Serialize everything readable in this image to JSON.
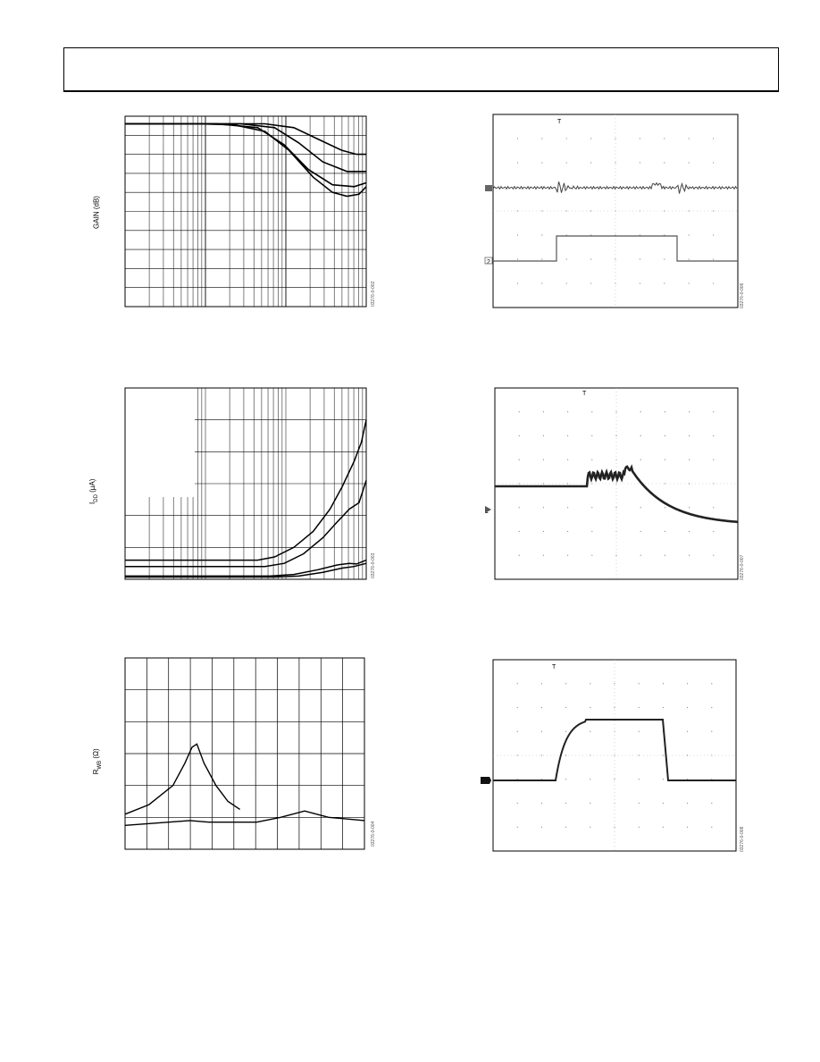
{
  "header": {
    "text": ""
  },
  "figures": {
    "gain": {
      "ylabel": "GAIN (dB)",
      "code": "03276-0-002"
    },
    "idd": {
      "ylabel_main": "I",
      "ylabel_sub": "DD",
      "ylabel_rest": " (µA)",
      "code": "03276-0-003"
    },
    "rwb": {
      "ylabel_main": "R",
      "ylabel_sub": "WB",
      "ylabel_rest": " (Ω)",
      "code": "03276-0-004"
    },
    "scope1": {
      "code": "03276-0-006",
      "ch1_marker": "1",
      "ch2_marker": "2",
      "trigger_marker": "T"
    },
    "scope2": {
      "code": "03276-0-007",
      "ch1_marker": "1",
      "trigger_marker": "T"
    },
    "scope3": {
      "code": "03276-0-008",
      "trigger_marker": "T"
    }
  },
  "chart_data": [
    {
      "type": "line",
      "id": "gain",
      "ylabel": "GAIN (dB)",
      "x_scale": "log",
      "grid": true,
      "series": [
        {
          "values": [
            [
              0.0,
              0.4
            ],
            [
              0.3,
              0.4
            ],
            [
              0.45,
              0.45
            ],
            [
              0.58,
              0.8
            ],
            [
              0.68,
              1.8
            ],
            [
              0.78,
              3.2
            ],
            [
              0.86,
              4.0
            ],
            [
              0.92,
              4.2
            ],
            [
              0.97,
              4.1
            ],
            [
              1.0,
              3.7
            ]
          ]
        },
        {
          "values": [
            [
              0.0,
              0.4
            ],
            [
              0.38,
              0.4
            ],
            [
              0.55,
              0.6
            ],
            [
              0.66,
              1.5
            ],
            [
              0.76,
              2.8
            ],
            [
              0.86,
              3.6
            ],
            [
              0.95,
              3.7
            ],
            [
              1.0,
              3.5
            ]
          ]
        },
        {
          "values": [
            [
              0.0,
              0.4
            ],
            [
              0.48,
              0.4
            ],
            [
              0.62,
              0.6
            ],
            [
              0.72,
              1.4
            ],
            [
              0.82,
              2.4
            ],
            [
              0.92,
              2.9
            ],
            [
              1.0,
              2.9
            ]
          ]
        },
        {
          "values": [
            [
              0.0,
              0.4
            ],
            [
              0.58,
              0.4
            ],
            [
              0.7,
              0.6
            ],
            [
              0.8,
              1.2
            ],
            [
              0.9,
              1.8
            ],
            [
              0.96,
              2.0
            ],
            [
              1.0,
              2.0
            ]
          ]
        }
      ]
    },
    {
      "type": "line",
      "id": "idd",
      "ylabel": "IDD (µA)",
      "x_scale": "log",
      "grid": true,
      "series": [
        {
          "values": [
            [
              0.0,
              5.4
            ],
            [
              0.55,
              5.4
            ],
            [
              0.62,
              5.3
            ],
            [
              0.7,
              5.0
            ],
            [
              0.78,
              4.5
            ],
            [
              0.85,
              3.8
            ],
            [
              0.9,
              3.1
            ],
            [
              0.95,
              2.3
            ],
            [
              0.98,
              1.7
            ],
            [
              1.0,
              1.0
            ]
          ]
        },
        {
          "values": [
            [
              0.0,
              5.6
            ],
            [
              0.58,
              5.6
            ],
            [
              0.66,
              5.5
            ],
            [
              0.74,
              5.2
            ],
            [
              0.82,
              4.7
            ],
            [
              0.88,
              4.2
            ],
            [
              0.93,
              3.8
            ],
            [
              0.97,
              3.6
            ],
            [
              1.0,
              2.9
            ]
          ]
        },
        {
          "values": [
            [
              0.0,
              5.9
            ],
            [
              0.6,
              5.9
            ],
            [
              0.7,
              5.85
            ],
            [
              0.8,
              5.7
            ],
            [
              0.88,
              5.55
            ],
            [
              0.93,
              5.5
            ],
            [
              0.96,
              5.52
            ],
            [
              1.0,
              5.4
            ]
          ]
        },
        {
          "values": [
            [
              0.0,
              5.93
            ],
            [
              0.62,
              5.93
            ],
            [
              0.72,
              5.9
            ],
            [
              0.82,
              5.78
            ],
            [
              0.9,
              5.65
            ],
            [
              0.95,
              5.6
            ],
            [
              1.0,
              5.5
            ]
          ]
        }
      ]
    },
    {
      "type": "line",
      "id": "rwb",
      "ylabel": "RWB (Ω)",
      "grid": true,
      "series": [
        {
          "values": [
            [
              0.0,
              4.9
            ],
            [
              0.1,
              4.6
            ],
            [
              0.2,
              4.0
            ],
            [
              0.25,
              3.3
            ],
            [
              0.28,
              2.8
            ],
            [
              0.3,
              2.7
            ],
            [
              0.33,
              3.3
            ],
            [
              0.38,
              4.0
            ],
            [
              0.43,
              4.5
            ],
            [
              0.48,
              4.75
            ]
          ]
        },
        {
          "values": [
            [
              0.0,
              5.25
            ],
            [
              0.27,
              5.1
            ],
            [
              0.35,
              5.15
            ],
            [
              0.55,
              5.15
            ],
            [
              0.65,
              5.0
            ],
            [
              0.75,
              4.8
            ],
            [
              0.85,
              5.0
            ],
            [
              1.0,
              5.1
            ]
          ]
        }
      ]
    }
  ]
}
